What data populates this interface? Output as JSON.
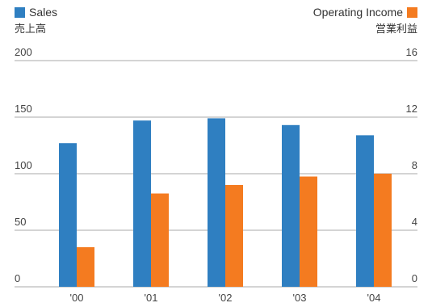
{
  "legend": {
    "sales_label": "Sales",
    "sales_label_ja": "売上高",
    "income_label": "Operating Income",
    "income_label_ja": "営業利益"
  },
  "chart_data": {
    "type": "bar",
    "categories": [
      "'00",
      "'01",
      "'02",
      "'03",
      "'04"
    ],
    "series": [
      {
        "name": "Sales",
        "axis": "left",
        "color": "#2f7fc1",
        "values": [
          127,
          147,
          149,
          143,
          134
        ]
      },
      {
        "name": "Operating Income",
        "axis": "right",
        "color": "#f47b20",
        "values": [
          2.8,
          6.6,
          7.2,
          7.8,
          8.0
        ]
      }
    ],
    "ylim_left": [
      0,
      200
    ],
    "ylim_right": [
      0,
      16
    ],
    "yticks_left": [
      "0",
      "50",
      "100",
      "150",
      "200"
    ],
    "yticks_right": [
      "0",
      "4",
      "8",
      "12",
      "16"
    ],
    "grid": true,
    "legend_position": "top"
  }
}
